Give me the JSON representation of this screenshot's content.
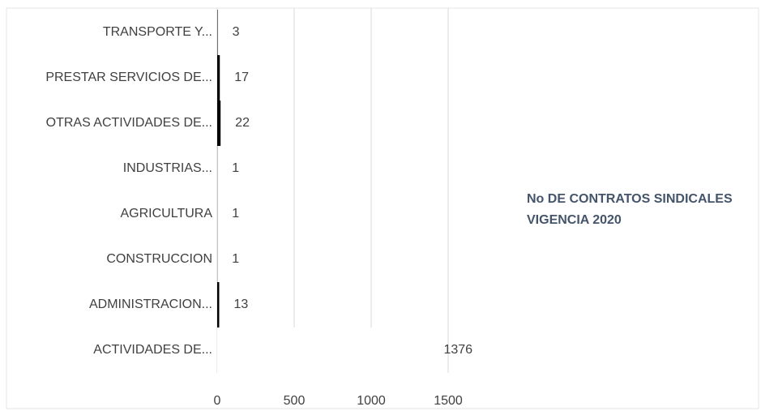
{
  "chart_data": {
    "type": "barh",
    "categories": [
      "TRANSPORTE Y...",
      "PRESTAR SERVICIOS DE...",
      "OTRAS ACTIVIDADES DE...",
      "INDUSTRIAS...",
      "AGRICULTURA",
      "CONSTRUCCION",
      "ADMINISTRACION...",
      "ACTIVIDADES DE..."
    ],
    "series": [
      {
        "name": "No DE CONTRATOS SINDICALES VIGENCIA 2020",
        "colors": [
          "#000000",
          "#000000",
          "#000000",
          "#000000",
          "#000000",
          "#000000",
          "#000000",
          "#ffffff"
        ],
        "values": [
          3,
          17,
          22,
          1,
          1,
          1,
          13,
          1376
        ]
      }
    ],
    "xlim": [
      0,
      1500
    ],
    "xticks": [
      0,
      500,
      1000,
      1500
    ],
    "grid": true
  }
}
